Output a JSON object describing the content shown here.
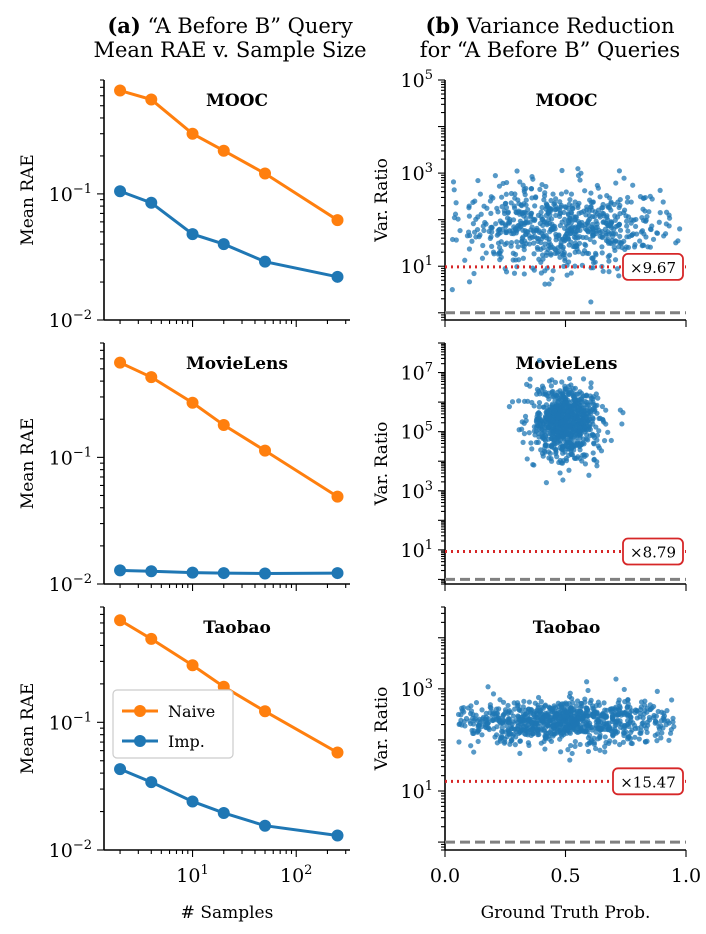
{
  "titles": {
    "a_label": "(a)",
    "a_line1": "“A Before B” Query",
    "a_line2": "Mean RAE v. Sample Size",
    "b_label": "(b)",
    "b_line1": "Variance Reduction",
    "b_line2": "for “A Before B” Queries"
  },
  "colors": {
    "naive": "#ff7f0e",
    "imp": "#1f77b4",
    "ratio_line": "#d62728",
    "baseline": "#808080"
  },
  "legend": {
    "naive": "Naive",
    "imp": "Imp."
  },
  "left_axis": {
    "ylabel": "Mean RAE",
    "xlabel": "# Samples",
    "xticks": [
      "10^1",
      "10^2"
    ],
    "yticks": [
      "10^-2",
      "10^-1"
    ]
  },
  "right_axis": {
    "ylabel": "Var. Ratio",
    "xlabel": "Ground Truth Prob.",
    "xticks": [
      "0.0",
      "0.5",
      "1.0"
    ]
  },
  "chart_data": [
    {
      "type": "line",
      "panel": "a-MOOC",
      "title": "MOOC",
      "xscale": "log",
      "yscale": "log",
      "x": [
        2,
        4,
        10,
        20,
        50,
        250
      ],
      "xlim": [
        1.4,
        330
      ],
      "ylim": [
        0.01,
        0.8
      ],
      "xlabel": "",
      "ylabel": "Mean RAE",
      "series": [
        {
          "name": "Naive",
          "values": [
            0.66,
            0.56,
            0.3,
            0.22,
            0.145,
            0.062
          ]
        },
        {
          "name": "Imp.",
          "values": [
            0.105,
            0.085,
            0.048,
            0.04,
            0.029,
            0.022
          ]
        }
      ]
    },
    {
      "type": "line",
      "panel": "a-MovieLens",
      "title": "MovieLens",
      "xscale": "log",
      "yscale": "log",
      "x": [
        2,
        4,
        10,
        20,
        50,
        250
      ],
      "xlim": [
        1.4,
        330
      ],
      "ylim": [
        0.01,
        0.8
      ],
      "xlabel": "",
      "ylabel": "Mean RAE",
      "series": [
        {
          "name": "Naive",
          "values": [
            0.56,
            0.43,
            0.27,
            0.18,
            0.113,
            0.049
          ]
        },
        {
          "name": "Imp.",
          "values": [
            0.0128,
            0.0126,
            0.0123,
            0.0122,
            0.0121,
            0.0122
          ]
        }
      ]
    },
    {
      "type": "line",
      "panel": "a-Taobao",
      "title": "Taobao",
      "xscale": "log",
      "yscale": "log",
      "x": [
        2,
        4,
        10,
        20,
        50,
        250
      ],
      "xlim": [
        1.4,
        330
      ],
      "ylim": [
        0.01,
        0.8
      ],
      "xlabel": "# Samples",
      "ylabel": "Mean RAE",
      "legend": "center-left",
      "series": [
        {
          "name": "Naive",
          "values": [
            0.63,
            0.45,
            0.28,
            0.19,
            0.122,
            0.058
          ]
        },
        {
          "name": "Imp.",
          "values": [
            0.043,
            0.034,
            0.024,
            0.0195,
            0.0155,
            0.013
          ]
        }
      ]
    },
    {
      "type": "scatter",
      "panel": "b-MOOC",
      "title": "MOOC",
      "yscale": "log",
      "xlim": [
        0,
        1
      ],
      "ylim": [
        0.7,
        100000
      ],
      "ylabel": "Var. Ratio",
      "xlabel": "",
      "yticks": [
        "10^1",
        "10^3",
        "10^5"
      ],
      "cluster": {
        "x_center": 0.5,
        "x_spread": 0.22,
        "log10_y_center": 1.8,
        "log10_y_spread": 0.45,
        "n": 700,
        "x_range": [
          0.02,
          0.98
        ]
      },
      "mean_ratio": 9.67,
      "mean_ratio_label": "×9.67",
      "baseline": 1
    },
    {
      "type": "scatter",
      "panel": "b-MovieLens",
      "title": "MovieLens",
      "yscale": "log",
      "xlim": [
        0,
        1
      ],
      "ylim": [
        0.7,
        100000000
      ],
      "ylabel": "Var. Ratio",
      "xlabel": "",
      "yticks": [
        "10^1",
        "10^3",
        "10^5",
        "10^7"
      ],
      "cluster": {
        "x_center": 0.5,
        "x_spread": 0.07,
        "log10_y_center": 5.3,
        "log10_y_spread": 0.6,
        "n": 800,
        "x_range": [
          0.2,
          0.8
        ]
      },
      "mean_ratio": 8.79,
      "mean_ratio_label": "×8.79",
      "baseline": 1
    },
    {
      "type": "scatter",
      "panel": "b-Taobao",
      "title": "Taobao",
      "yscale": "log",
      "xlim": [
        0,
        1
      ],
      "ylim": [
        0.7,
        40000
      ],
      "ylabel": "Var. Ratio",
      "xlabel": "Ground Truth Prob.",
      "yticks": [
        "10^1",
        "10^3"
      ],
      "cluster": {
        "x_center": 0.5,
        "x_spread": 0.24,
        "log10_y_center": 2.35,
        "log10_y_spread": 0.22,
        "n": 900,
        "x_range": [
          0.05,
          0.95
        ]
      },
      "mean_ratio": 15.47,
      "mean_ratio_label": "×15.47",
      "baseline": 1
    }
  ]
}
